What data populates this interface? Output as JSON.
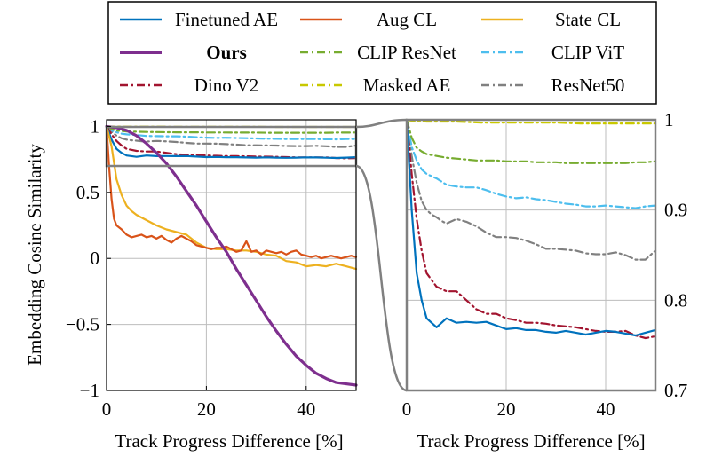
{
  "legend": {
    "entries": [
      {
        "label": "Finetuned AE",
        "color": "#0072BD",
        "dash": "solid",
        "bold": false
      },
      {
        "label": "Aug CL",
        "color": "#D95319",
        "dash": "solid",
        "bold": false
      },
      {
        "label": "State CL",
        "color": "#EDB120",
        "dash": "solid",
        "bold": false
      },
      {
        "label": "Ours",
        "color": "#7E2F8E",
        "dash": "solid",
        "bold": true
      },
      {
        "label": "CLIP ResNet",
        "color": "#77AC30",
        "dash": "dashdot",
        "bold": false
      },
      {
        "label": "CLIP ViT",
        "color": "#4DBEEE",
        "dash": "dashdot",
        "bold": false
      },
      {
        "label": "Dino V2",
        "color": "#A2142F",
        "dash": "dashdot",
        "bold": false
      },
      {
        "label": "Masked AE",
        "color": "#C8C800",
        "dash": "dashdot",
        "bold": false
      },
      {
        "label": "ResNet50",
        "color": "#808080",
        "dash": "dashdot",
        "bold": false
      }
    ]
  },
  "chart_data": [
    {
      "type": "line",
      "panel": "left",
      "xlabel": "Track Progress Difference [%]",
      "ylabel": "Embedding Cosine Similarity",
      "xlim": [
        0,
        50
      ],
      "ylim": [
        -1,
        1.05
      ],
      "xticks": [
        0,
        20,
        40
      ],
      "xtick_labels": [
        "0",
        "20",
        "40"
      ],
      "yticks": [
        -1,
        -0.5,
        0,
        0.5,
        1
      ],
      "ytick_labels": [
        "−1",
        "−0.5",
        "0",
        "0.5",
        "1"
      ],
      "grid": true,
      "zoom_box": {
        "x": [
          0,
          50
        ],
        "y": [
          0.7,
          1.0
        ]
      },
      "series": [
        {
          "name": "Finetuned AE",
          "x": [
            0,
            1,
            2,
            3,
            4,
            6,
            8,
            10,
            12,
            14,
            16,
            18,
            20,
            22,
            24,
            26,
            28,
            30,
            32,
            34,
            36,
            38,
            40,
            42,
            44,
            46,
            48,
            50
          ],
          "values": [
            1.0,
            0.9,
            0.83,
            0.8,
            0.78,
            0.77,
            0.78,
            0.775,
            0.776,
            0.775,
            0.776,
            0.772,
            0.768,
            0.769,
            0.767,
            0.767,
            0.765,
            0.764,
            0.766,
            0.764,
            0.762,
            0.764,
            0.766,
            0.765,
            0.763,
            0.761,
            0.764,
            0.767
          ]
        },
        {
          "name": "Aug CL",
          "x": [
            0,
            0.5,
            1,
            1.5,
            2,
            3,
            4,
            5,
            6,
            7,
            8,
            9,
            10,
            11,
            12,
            13,
            14,
            15,
            16,
            17,
            18,
            19,
            20,
            21,
            22,
            23,
            24,
            25,
            26,
            27,
            28,
            29,
            30,
            31,
            32,
            33,
            34,
            35,
            36,
            37,
            38,
            39,
            40,
            41,
            42,
            43,
            44,
            45,
            46,
            47,
            48,
            49,
            50
          ],
          "values": [
            1.0,
            0.7,
            0.45,
            0.3,
            0.25,
            0.22,
            0.18,
            0.16,
            0.17,
            0.18,
            0.16,
            0.17,
            0.15,
            0.17,
            0.14,
            0.12,
            0.15,
            0.17,
            0.15,
            0.13,
            0.1,
            0.09,
            0.08,
            0.07,
            0.08,
            0.08,
            0.09,
            0.07,
            0.05,
            0.06,
            0.13,
            0.05,
            0.06,
            0.03,
            0.06,
            0.05,
            0.04,
            0.05,
            0.03,
            0.05,
            0.06,
            0.03,
            0.02,
            0.01,
            0.02,
            0.0,
            0.01,
            0.02,
            0.01,
            0.0,
            0.01,
            0.02,
            0.01
          ]
        },
        {
          "name": "State CL",
          "x": [
            0,
            1,
            2,
            3,
            4,
            5,
            6,
            8,
            10,
            12,
            14,
            16,
            18,
            20,
            22,
            24,
            26,
            28,
            30,
            32,
            34,
            36,
            38,
            40,
            42,
            44,
            46,
            48,
            50
          ],
          "values": [
            1.0,
            0.85,
            0.6,
            0.48,
            0.4,
            0.36,
            0.33,
            0.29,
            0.25,
            0.22,
            0.2,
            0.18,
            0.12,
            0.08,
            0.07,
            0.07,
            0.06,
            0.06,
            0.05,
            0.03,
            0.02,
            -0.02,
            -0.03,
            -0.06,
            -0.05,
            -0.06,
            -0.04,
            -0.06,
            -0.08
          ]
        },
        {
          "name": "Ours",
          "x": [
            0,
            2,
            4,
            6,
            8,
            10,
            12,
            14,
            16,
            18,
            20,
            22,
            24,
            26,
            28,
            30,
            32,
            34,
            36,
            38,
            40,
            42,
            44,
            46,
            48,
            50
          ],
          "values": [
            1.0,
            0.99,
            0.97,
            0.93,
            0.87,
            0.8,
            0.72,
            0.62,
            0.51,
            0.4,
            0.28,
            0.16,
            0.05,
            -0.08,
            -0.2,
            -0.32,
            -0.44,
            -0.55,
            -0.65,
            -0.74,
            -0.81,
            -0.87,
            -0.91,
            -0.94,
            -0.95,
            -0.96
          ]
        },
        {
          "name": "CLIP ResNet",
          "x": [
            0,
            1,
            2,
            3,
            4,
            6,
            8,
            10,
            12,
            14,
            16,
            18,
            20,
            22,
            24,
            26,
            28,
            30,
            32,
            34,
            36,
            38,
            40,
            42,
            44,
            46,
            48,
            50
          ],
          "values": [
            1.0,
            0.98,
            0.969,
            0.965,
            0.962,
            0.96,
            0.958,
            0.957,
            0.956,
            0.955,
            0.955,
            0.955,
            0.954,
            0.954,
            0.954,
            0.953,
            0.953,
            0.953,
            0.952,
            0.952,
            0.952,
            0.952,
            0.952,
            0.952,
            0.952,
            0.953,
            0.953,
            0.954
          ]
        },
        {
          "name": "CLIP ViT",
          "x": [
            0,
            1,
            2,
            3,
            4,
            6,
            8,
            10,
            12,
            14,
            16,
            18,
            20,
            22,
            24,
            26,
            28,
            30,
            32,
            34,
            36,
            38,
            40,
            42,
            44,
            46,
            48,
            50
          ],
          "values": [
            1.0,
            0.97,
            0.955,
            0.945,
            0.94,
            0.935,
            0.928,
            0.926,
            0.925,
            0.925,
            0.922,
            0.918,
            0.915,
            0.913,
            0.914,
            0.912,
            0.911,
            0.909,
            0.907,
            0.906,
            0.904,
            0.904,
            0.905,
            0.904,
            0.903,
            0.902,
            0.904,
            0.905
          ]
        },
        {
          "name": "Dino V2",
          "x": [
            0,
            1,
            2,
            3,
            4,
            6,
            8,
            10,
            12,
            14,
            16,
            18,
            20,
            22,
            24,
            26,
            28,
            30,
            32,
            34,
            36,
            38,
            40,
            42,
            44,
            46,
            48,
            50
          ],
          "values": [
            1.0,
            0.94,
            0.89,
            0.855,
            0.83,
            0.815,
            0.81,
            0.81,
            0.8,
            0.79,
            0.785,
            0.785,
            0.78,
            0.778,
            0.775,
            0.775,
            0.774,
            0.772,
            0.771,
            0.77,
            0.768,
            0.766,
            0.765,
            0.765,
            0.766,
            0.761,
            0.758,
            0.76
          ]
        },
        {
          "name": "Masked AE",
          "x": [
            0,
            1,
            2,
            4,
            6,
            8,
            10,
            15,
            20,
            25,
            30,
            35,
            40,
            45,
            50
          ],
          "values": [
            1.0,
            0.999,
            0.999,
            0.998,
            0.998,
            0.998,
            0.998,
            0.997,
            0.997,
            0.997,
            0.997,
            0.996,
            0.996,
            0.996,
            0.996
          ]
        },
        {
          "name": "ResNet50",
          "x": [
            0,
            1,
            2,
            3,
            4,
            5,
            6,
            7,
            8,
            10,
            12,
            14,
            16,
            18,
            20,
            22,
            24,
            26,
            28,
            30,
            32,
            34,
            36,
            38,
            40,
            42,
            44,
            46,
            48,
            50
          ],
          "values": [
            1.0,
            0.96,
            0.93,
            0.91,
            0.9,
            0.895,
            0.892,
            0.888,
            0.885,
            0.89,
            0.887,
            0.882,
            0.875,
            0.87,
            0.87,
            0.869,
            0.866,
            0.862,
            0.857,
            0.857,
            0.856,
            0.855,
            0.852,
            0.851,
            0.851,
            0.853,
            0.85,
            0.845,
            0.845,
            0.855
          ]
        }
      ]
    },
    {
      "type": "line",
      "panel": "right",
      "xlabel": "Track Progress Difference [%]",
      "ylabel": "",
      "xlim": [
        0,
        50
      ],
      "ylim": [
        0.7,
        1.0
      ],
      "xticks": [
        0,
        20,
        40
      ],
      "xtick_labels": [
        "0",
        "20",
        "40"
      ],
      "yticks": [
        0.7,
        0.8,
        0.9,
        1.0
      ],
      "ytick_labels": [
        "0.7",
        "0.8",
        "0.9",
        "1"
      ],
      "grid": true,
      "series_ref": "same as left panel, zoomed to y in [0.7, 1.0]"
    }
  ]
}
